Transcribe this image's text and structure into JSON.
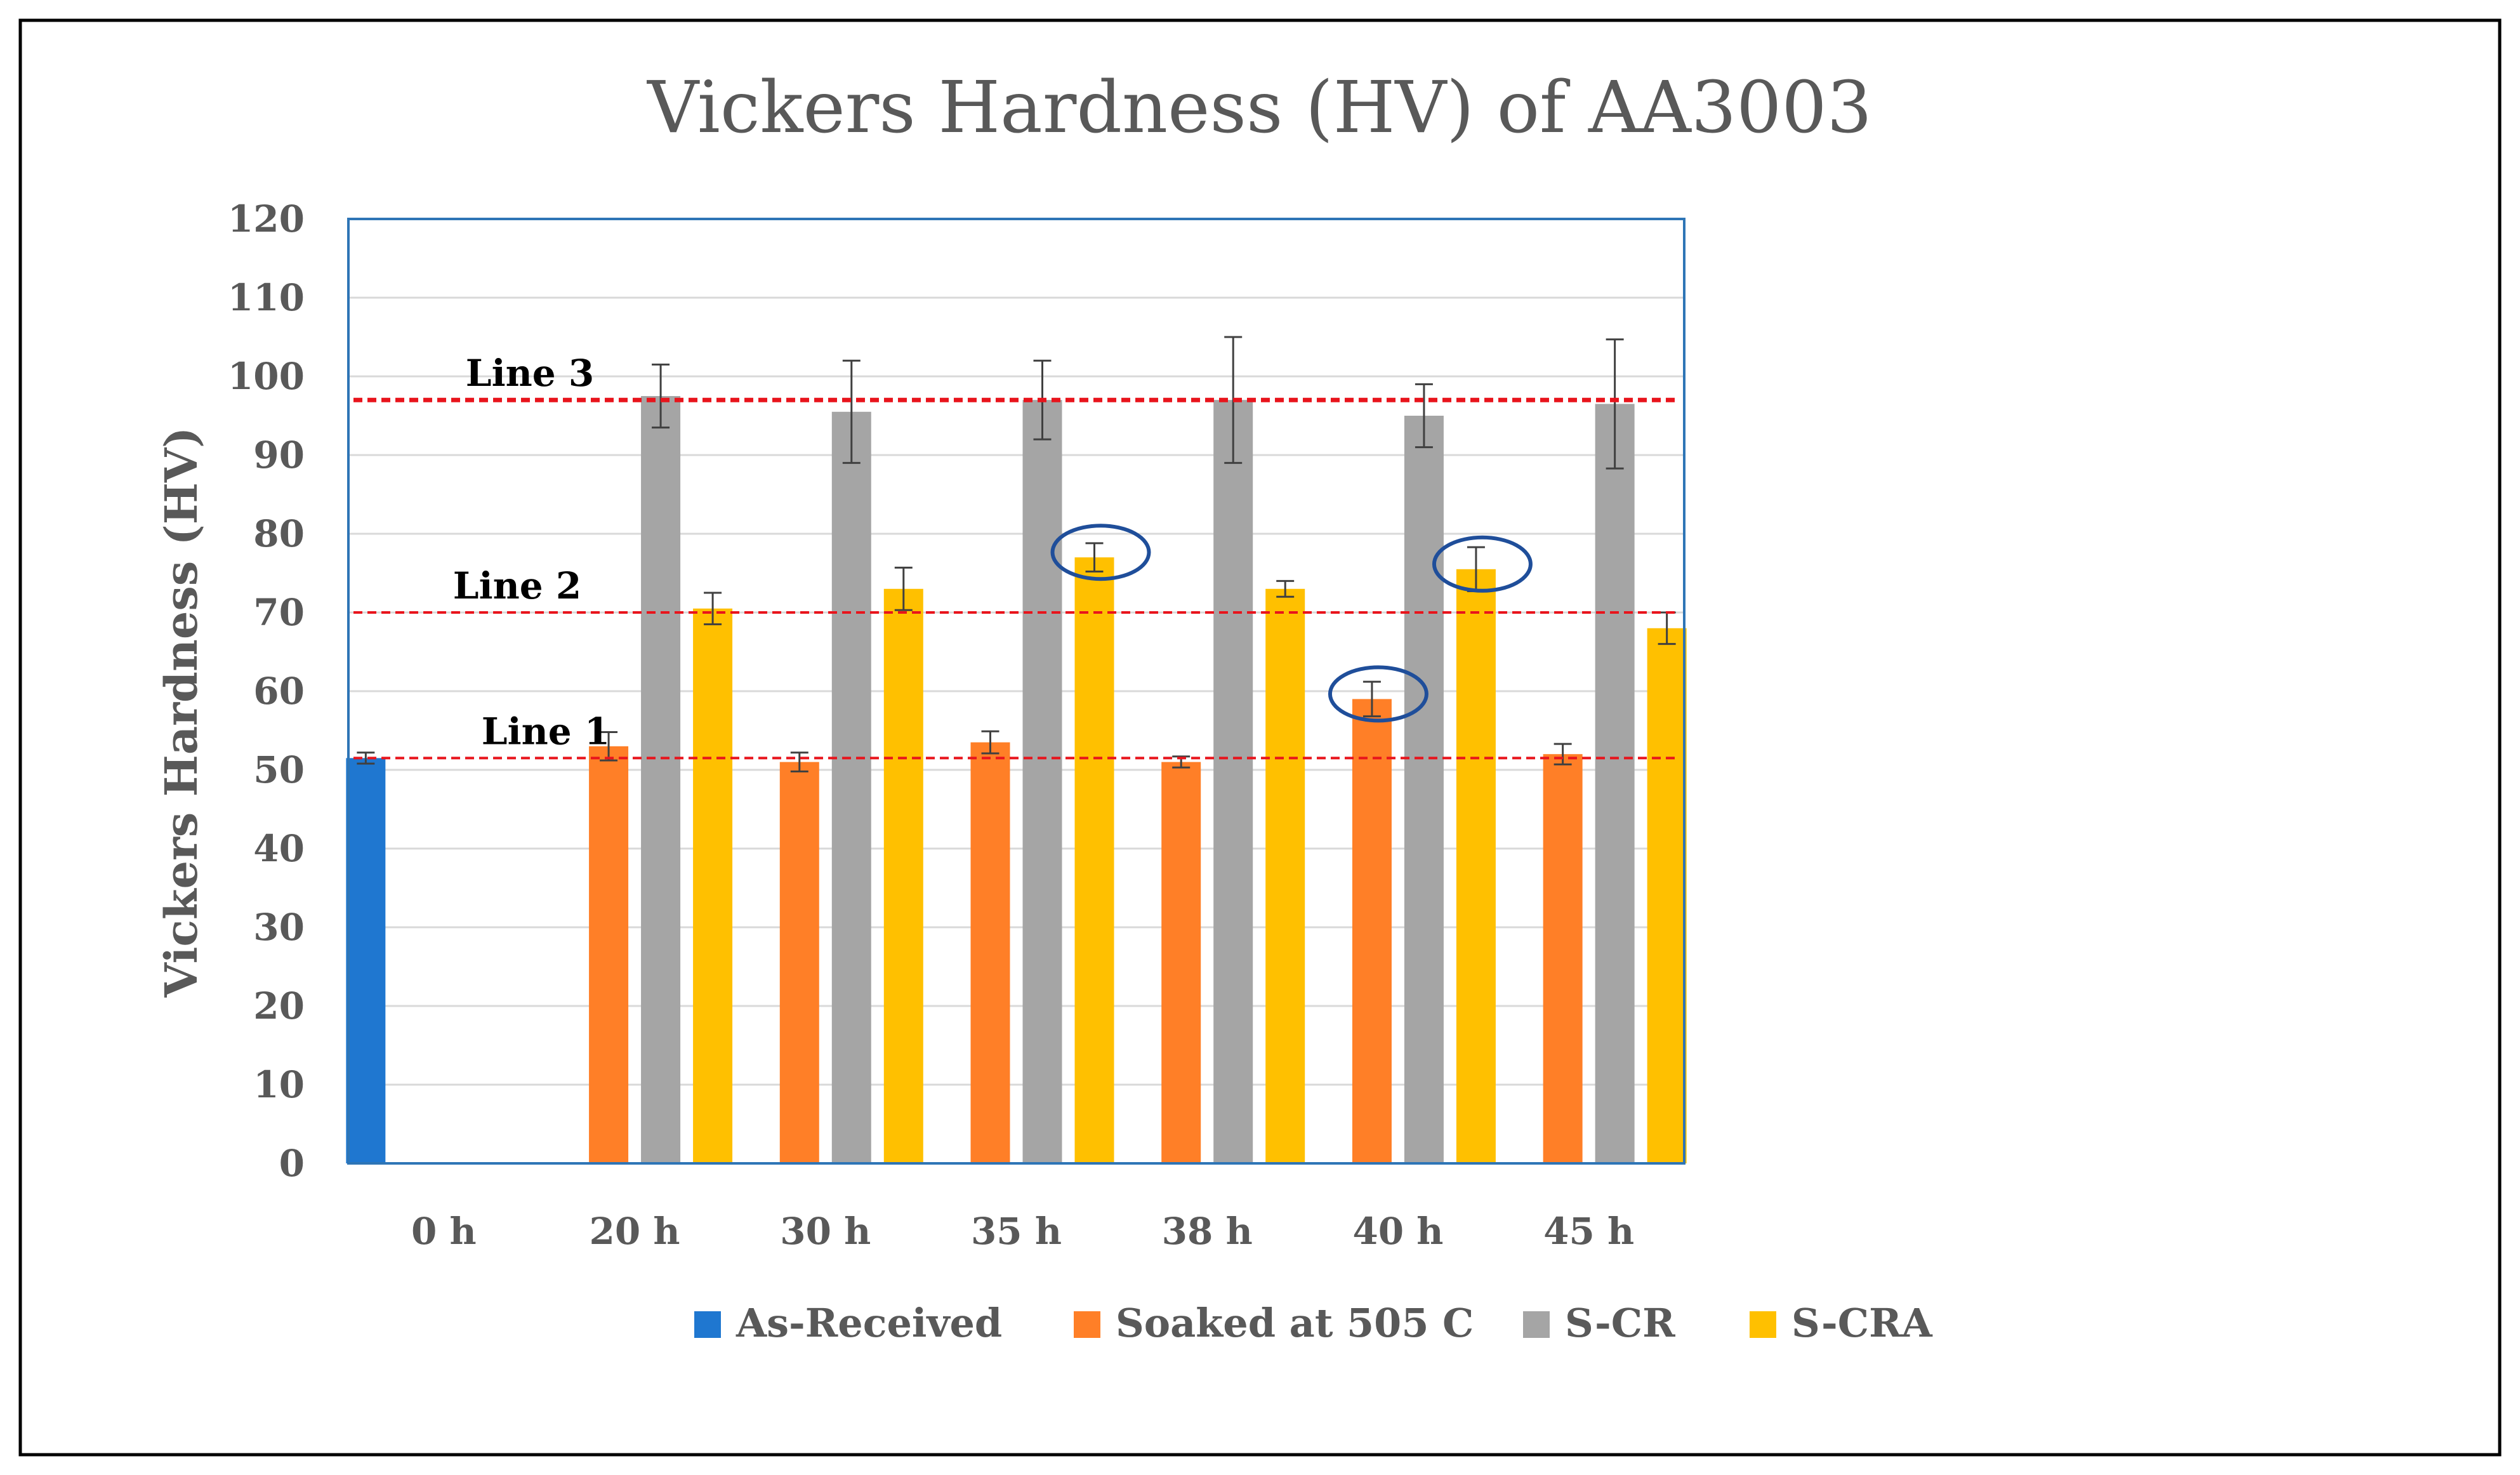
{
  "chart_data": {
    "type": "bar",
    "title": "Vickers Hardness (HV) of AA3003",
    "xlabel": "",
    "ylabel": "Vickers Hardness (HV)",
    "ylim": [
      0,
      120
    ],
    "yticks": [
      0,
      10,
      20,
      30,
      40,
      50,
      60,
      70,
      80,
      90,
      100,
      110,
      120
    ],
    "grid": true,
    "legend_position": "bottom",
    "categories": [
      "0 h",
      "20 h",
      "30 h",
      "35 h",
      "38 h",
      "40 h",
      "45 h"
    ],
    "series": [
      {
        "name": "As-Received",
        "color": "#1f77d0",
        "values": [
          51.5,
          null,
          null,
          null,
          null,
          null,
          null
        ],
        "errors": [
          0.7,
          null,
          null,
          null,
          null,
          null,
          null
        ]
      },
      {
        "name": "Soaked at 505 C",
        "color": "#ff7f27",
        "values": [
          null,
          53,
          51,
          53.5,
          51,
          59,
          52
        ],
        "errors": [
          null,
          1.8,
          1.2,
          1.4,
          0.7,
          2.2,
          1.3
        ]
      },
      {
        "name": "S-CR",
        "color": "#a5a5a5",
        "values": [
          null,
          97.5,
          95.5,
          97,
          97,
          95,
          96.5
        ],
        "errors": [
          null,
          4,
          6.5,
          5,
          8,
          4,
          8.2
        ]
      },
      {
        "name": "S-CRA",
        "color": "#ffc000",
        "values": [
          null,
          70.5,
          73,
          77,
          73,
          75.5,
          68
        ],
        "errors": [
          null,
          2,
          2.7,
          1.8,
          1,
          2.8,
          2
        ]
      }
    ],
    "reference_lines": [
      {
        "label": "Line 1",
        "value": 51.5,
        "color": "#e8141c"
      },
      {
        "label": "Line 2",
        "value": 70,
        "color": "#e8141c"
      },
      {
        "label": "Line 3",
        "value": 97,
        "color": "#e8141c"
      }
    ],
    "highlights": [
      {
        "category": "35 h",
        "series": "S-CRA"
      },
      {
        "category": "40 h",
        "series": "Soaked at 505 C"
      },
      {
        "category": "40 h",
        "series": "S-CRA"
      }
    ]
  }
}
